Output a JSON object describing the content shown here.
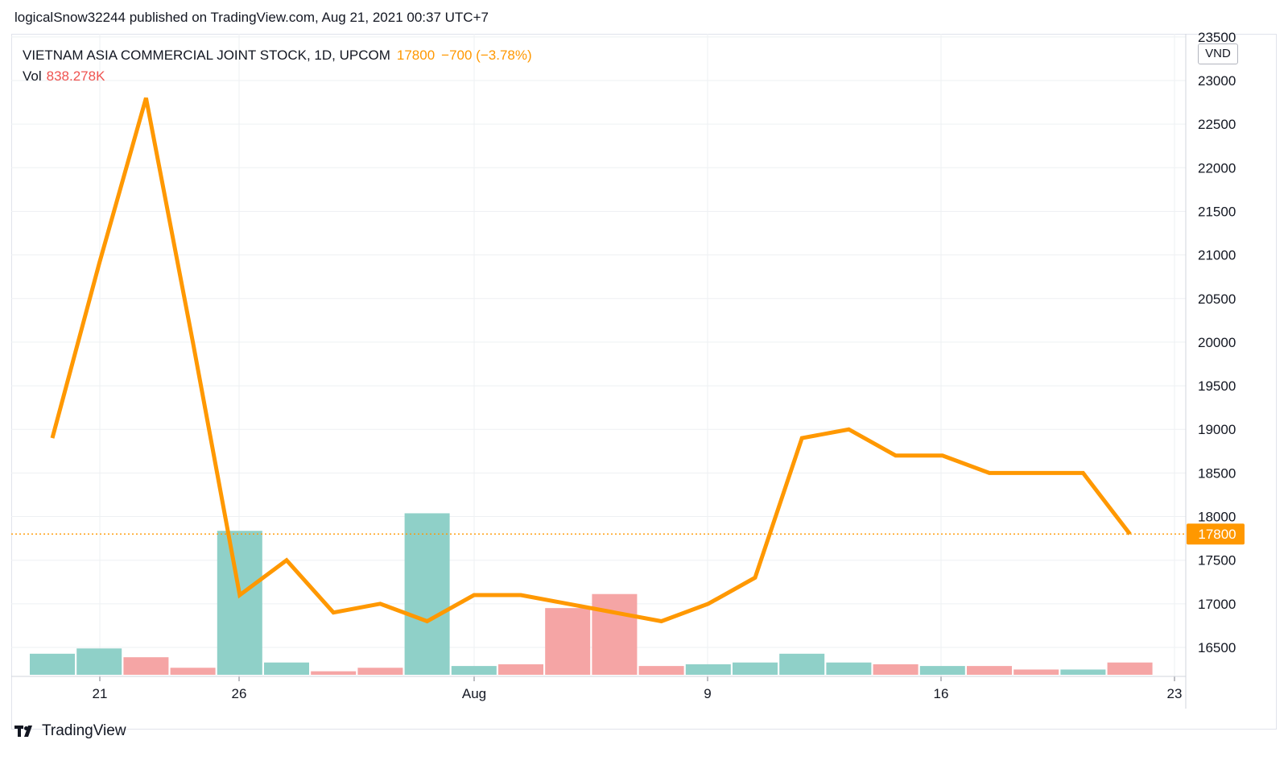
{
  "caption": "logicalSnow32244 published on TradingView.com, Aug 21, 2021 00:37 UTC+7",
  "legend": {
    "symbol": "VIETNAM ASIA COMMERCIAL JOINT STOCK, 1D, UPCOM",
    "last_price": "17800",
    "change": "−700 (−3.78%)",
    "vol_label": "Vol",
    "vol_value": "838.278K"
  },
  "currency": "VND",
  "brand": "TradingView",
  "colors": {
    "line": "#ff9800",
    "vol_up": "#8fd0c8",
    "vol_down": "#f5a5a5",
    "grid": "#eef0f3",
    "axis_text": "#131722"
  },
  "chart_data": {
    "type": "line",
    "y_ticks": [
      "16500",
      "17000",
      "17500",
      "18000",
      "18500",
      "19000",
      "19500",
      "20000",
      "20500",
      "21000",
      "21500",
      "22000",
      "22500",
      "23000",
      "23500"
    ],
    "ylim": [
      16100,
      23500
    ],
    "x_ticks": [
      "21",
      "26",
      "Aug",
      "9",
      "16",
      "23"
    ],
    "price_label": "17800",
    "series": [
      {
        "values": [
          18900,
          20900,
          22800,
          20000,
          17100,
          17500,
          16900,
          17000,
          16800,
          17100,
          17100,
          17000,
          16900,
          16800,
          17000,
          17300,
          18900,
          19000,
          18700,
          18700,
          18500,
          18500,
          18500,
          17800
        ]
      }
    ],
    "volume_direction": [
      "up",
      "up",
      "down",
      "down",
      "up",
      "up",
      "down",
      "down",
      "up",
      "up",
      "down",
      "down",
      "down",
      "down",
      "up",
      "up",
      "up",
      "up",
      "down",
      "up",
      "down",
      "down",
      "up",
      "down"
    ],
    "volume_relative": [
      0.12,
      0.15,
      0.1,
      0.04,
      0.82,
      0.07,
      0.02,
      0.04,
      0.92,
      0.05,
      0.06,
      0.38,
      0.46,
      0.05,
      0.06,
      0.07,
      0.12,
      0.07,
      0.06,
      0.05,
      0.05,
      0.03,
      0.03,
      0.07
    ],
    "grid": true
  }
}
